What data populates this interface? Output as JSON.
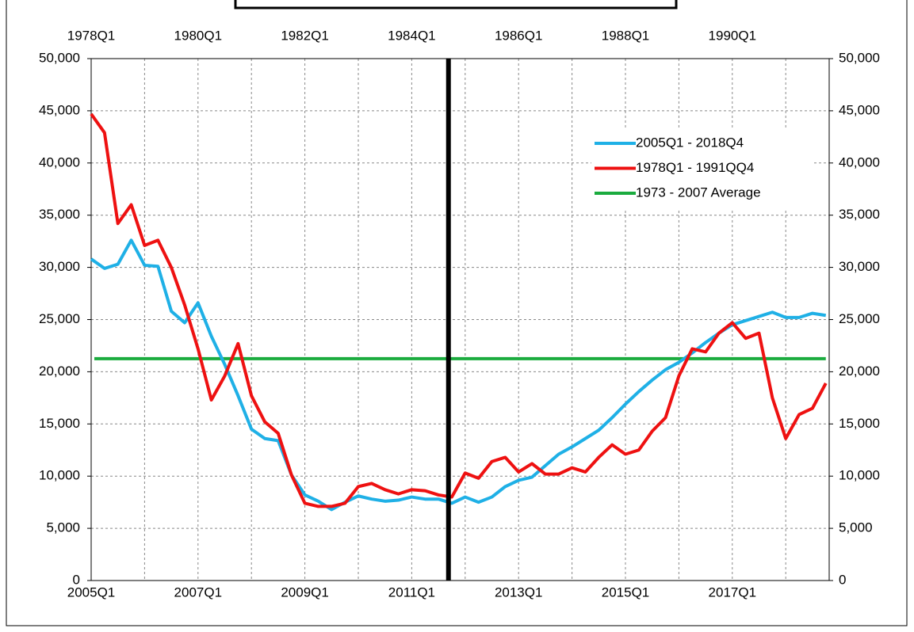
{
  "chart_data": {
    "type": "line",
    "categories": [
      "2005Q1",
      null,
      null,
      null,
      null,
      null,
      null,
      null,
      "2007Q1",
      null,
      null,
      null,
      null,
      null,
      null,
      null,
      "2009Q1",
      null,
      null,
      null,
      null,
      null,
      null,
      null,
      "2011Q1",
      null,
      null,
      null,
      null,
      null,
      null,
      null,
      "2013Q1",
      null,
      null,
      null,
      null,
      null,
      null,
      null,
      "2015Q1",
      null,
      null,
      null,
      null,
      null,
      null,
      null,
      "2017Q1",
      null,
      null,
      null,
      null,
      null,
      null,
      null
    ],
    "x2_categories": [
      "1978Q1",
      null,
      null,
      null,
      null,
      null,
      null,
      null,
      "1980Q1",
      null,
      null,
      null,
      null,
      null,
      null,
      null,
      "1982Q1",
      null,
      null,
      null,
      null,
      null,
      null,
      null,
      "1984Q1",
      null,
      null,
      null,
      null,
      null,
      null,
      null,
      "1986Q1",
      null,
      null,
      null,
      null,
      null,
      null,
      null,
      "1988Q1",
      null,
      null,
      null,
      null,
      null,
      null,
      null,
      "1990Q1",
      null,
      null,
      null,
      null,
      null,
      null,
      null
    ],
    "series": [
      {
        "name": "2005Q1 - 2018Q4",
        "color": "#1fb0e6",
        "values": [
          30800,
          29900,
          30300,
          32600,
          30200,
          30100,
          25800,
          24700,
          26600,
          23400,
          20700,
          17700,
          14500,
          13600,
          13400,
          10100,
          8200,
          7600,
          6800,
          7500,
          8100,
          7800,
          7600,
          7700,
          8000,
          7800,
          7800,
          7400,
          8000,
          7500,
          8000,
          9000,
          9600,
          9900,
          11000,
          12100,
          12800,
          13600,
          14400,
          15600,
          16900,
          18100,
          19200,
          20200,
          20900,
          21800,
          22800,
          23700,
          24500,
          24900,
          25300,
          25700,
          25200,
          25200,
          25600,
          25400
        ]
      },
      {
        "name": "1978Q1 - 1991QQ4",
        "color": "#ee1111",
        "values": [
          44700,
          42900,
          34200,
          36000,
          32100,
          32600,
          30000,
          26400,
          22200,
          17300,
          19600,
          22700,
          17700,
          15200,
          14100,
          10100,
          7400,
          7100,
          7100,
          7400,
          9000,
          9300,
          8700,
          8300,
          8700,
          8600,
          8200,
          8000,
          10300,
          9800,
          11400,
          11800,
          10400,
          11200,
          10200,
          10200,
          10800,
          10400,
          11800,
          13000,
          12100,
          12500,
          14300,
          15600,
          19600,
          22200,
          21900,
          23700,
          24700,
          23200,
          23700,
          17500,
          13600,
          15900,
          16500,
          18900
        ]
      }
    ],
    "average": {
      "name": "1973 - 2007 Average",
      "color": "#1aab3e",
      "value": 21250
    },
    "marker_line": {
      "x_index": 26.75,
      "color": "#000000"
    },
    "ylim": [
      0,
      50000
    ],
    "yticks": [
      0,
      {
        "value": 5000,
        "label": "5,000"
      },
      {
        "value": 10000,
        "label": "10,000"
      },
      {
        "value": 15000,
        "label": "15,000"
      },
      {
        "value": 20000,
        "label": "20,000"
      },
      {
        "value": 25000,
        "label": "25,000"
      },
      {
        "value": 30000,
        "label": "30,000"
      },
      {
        "value": 35000,
        "label": "35,000"
      },
      {
        "value": 40000,
        "label": "40,000"
      },
      {
        "value": 45000,
        "label": "45,000"
      },
      {
        "value": 50000,
        "label": "50,000"
      }
    ],
    "y2lim": [
      0,
      50000
    ],
    "y2ticks": [
      0,
      {
        "value": 5000,
        "label": "5,000"
      },
      {
        "value": 10000,
        "label": "10,000"
      },
      {
        "value": 15000,
        "label": "15,000"
      },
      {
        "value": 20000,
        "label": "20,000"
      },
      {
        "value": 25000,
        "label": "25,000"
      },
      {
        "value": 30000,
        "label": "30,000"
      },
      {
        "value": 35000,
        "label": "35,000"
      },
      {
        "value": 40000,
        "label": "40,000"
      },
      {
        "value": 45000,
        "label": "45,000"
      },
      {
        "value": 50000,
        "label": "50,000"
      }
    ],
    "grid": true,
    "legend": "top-right"
  }
}
